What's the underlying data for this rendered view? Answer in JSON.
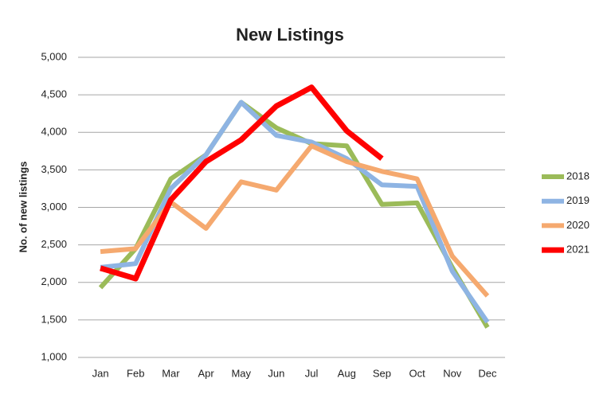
{
  "chart_data": {
    "type": "line",
    "title": "New Listings",
    "y_label": "No. of new listings",
    "categories": [
      "Jan",
      "Feb",
      "Mar",
      "Apr",
      "May",
      "Jun",
      "Jul",
      "Aug",
      "Sep",
      "Oct",
      "Nov",
      "Dec"
    ],
    "series": [
      {
        "name": "2018",
        "color": "#9bbb59",
        "values": [
          1930,
          2450,
          3380,
          3700,
          4400,
          4060,
          3850,
          3820,
          3040,
          3060,
          2200,
          1400
        ]
      },
      {
        "name": "2019",
        "color": "#8eb4e3",
        "values": [
          2200,
          2250,
          3250,
          3700,
          4400,
          3960,
          3870,
          3650,
          3300,
          3280,
          2150,
          1470
        ]
      },
      {
        "name": "2020",
        "color": "#f5a96f",
        "values": [
          2410,
          2450,
          3070,
          2720,
          3340,
          3230,
          3820,
          3610,
          3480,
          3380,
          2350,
          1820
        ]
      },
      {
        "name": "2021",
        "color": "#ff0000",
        "values": [
          2190,
          2050,
          3100,
          3610,
          3900,
          4350,
          4600,
          4020,
          3650,
          null,
          null,
          null
        ]
      }
    ],
    "ylim": [
      1000,
      5000
    ],
    "yticks": [
      {
        "value": 1000,
        "label": "1,000"
      },
      {
        "value": 1500,
        "label": "1,500"
      },
      {
        "value": 2000,
        "label": "2,000"
      },
      {
        "value": 2500,
        "label": "2,500"
      },
      {
        "value": 3000,
        "label": "3,000"
      },
      {
        "value": 3500,
        "label": "3,500"
      },
      {
        "value": 4000,
        "label": "4,000"
      },
      {
        "value": 4500,
        "label": "4,500"
      },
      {
        "value": 5000,
        "label": "5,000"
      }
    ],
    "grid": true,
    "legend": "right"
  }
}
